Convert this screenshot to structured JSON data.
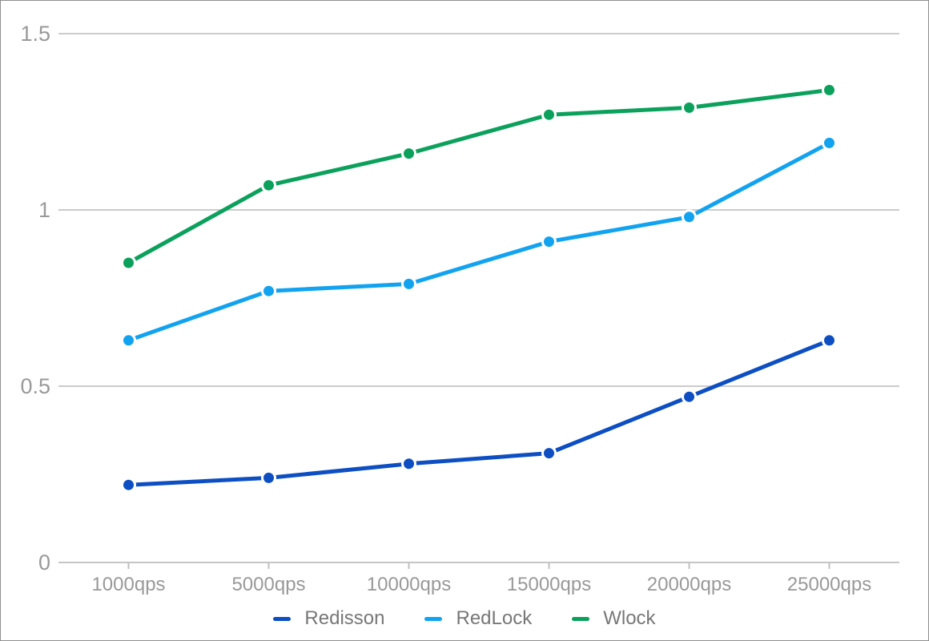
{
  "chart_data": {
    "type": "line",
    "title": "",
    "xlabel": "",
    "ylabel": "",
    "categories": [
      "1000qps",
      "5000qps",
      "10000qps",
      "15000qps",
      "20000qps",
      "25000qps"
    ],
    "series": [
      {
        "name": "Redisson",
        "color": "#0d4fc3",
        "values": [
          0.22,
          0.24,
          0.28,
          0.31,
          0.47,
          0.63
        ]
      },
      {
        "name": "RedLock",
        "color": "#12a3f0",
        "values": [
          0.63,
          0.77,
          0.79,
          0.91,
          0.98,
          1.19
        ]
      },
      {
        "name": "Wlock",
        "color": "#0ba15c",
        "values": [
          0.85,
          1.07,
          1.16,
          1.27,
          1.29,
          1.34
        ]
      }
    ],
    "y_ticks": [
      0,
      0.5,
      1,
      1.5
    ],
    "y_tick_labels": [
      "0",
      "0.5",
      "1",
      "1.5"
    ],
    "ylim": [
      0,
      1.5
    ],
    "grid": true,
    "legend_position": "bottom"
  },
  "style_colors": {
    "grid_line": "#cccccc",
    "axis_line": "#c6c6c6",
    "tick_mark": "#c0c0c0",
    "axis_label": "#999999",
    "legend_text": "#777777",
    "point_halo": "#ffffff",
    "background": "#ffffff",
    "frame_border": "#8f8f8f"
  }
}
